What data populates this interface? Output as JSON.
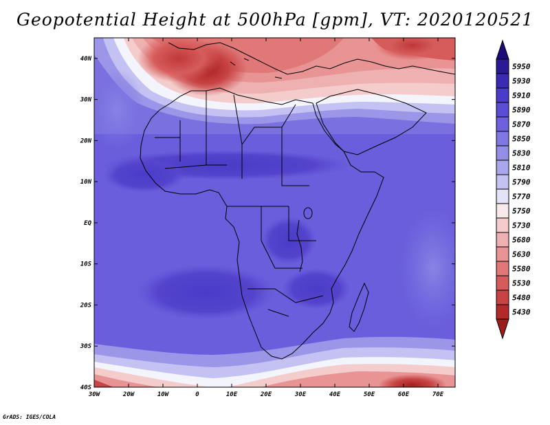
{
  "title": "Geopotential Height at 500hPa [gpm], VT: 2020120521",
  "footer": "GrADS: IGES/COLA",
  "map": {
    "lon_ticks": [
      "30W",
      "20W",
      "10W",
      "0",
      "10E",
      "20E",
      "30E",
      "40E",
      "50E",
      "60E",
      "70E"
    ],
    "lat_ticks": [
      "40N",
      "30N",
      "20N",
      "10N",
      "EQ",
      "10S",
      "20S",
      "30S",
      "40S"
    ],
    "lon_range": [
      -30,
      75
    ],
    "lat_range": [
      -40,
      45
    ]
  },
  "colorbar": {
    "levels": [
      "5950",
      "5930",
      "5910",
      "5890",
      "5870",
      "5850",
      "5830",
      "5810",
      "5790",
      "5770",
      "5750",
      "5730",
      "5680",
      "5630",
      "5580",
      "5530",
      "5480",
      "5430"
    ],
    "colors": [
      "#2a1a96",
      "#3a2ab4",
      "#4a3cc8",
      "#5c4ed4",
      "#6e62dc",
      "#8078e2",
      "#958ee6",
      "#aaa6ec",
      "#c4c2f2",
      "#e2e2f8",
      "#f8eaea",
      "#f4cccc",
      "#eeb0b0",
      "#e89494",
      "#e07878",
      "#d65c5c",
      "#c84444",
      "#b42a2a"
    ],
    "top_arrow_color": "#1a0a7a",
    "bottom_arrow_color": "#9c1c1c"
  }
}
